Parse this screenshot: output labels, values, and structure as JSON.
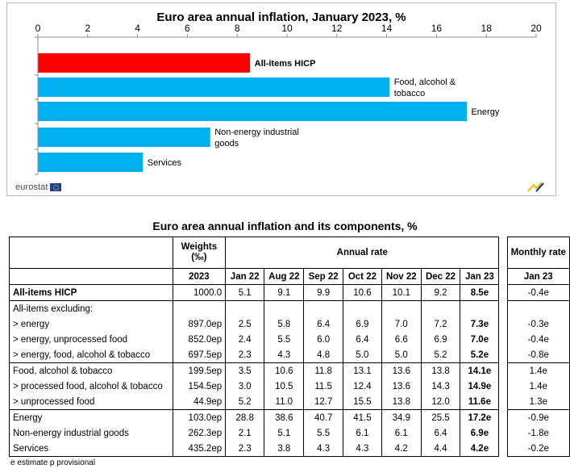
{
  "chart_data": {
    "type": "bar",
    "orientation": "horizontal",
    "title": "Euro area annual inflation, January 2023, %",
    "xlim": [
      0,
      20
    ],
    "x_ticks": [
      "0",
      "2",
      "4",
      "6",
      "8",
      "10",
      "12",
      "14",
      "16",
      "18",
      "20"
    ],
    "tick_position": "top",
    "grid": false,
    "categories": [
      "All-items HICP",
      "Food, alcohol & tobacco",
      "Energy",
      "Non-energy industrial goods",
      "Services"
    ],
    "category_label_lines": [
      [
        "All-items HICP"
      ],
      [
        "Food, alcohol &",
        "tobacco"
      ],
      [
        "Energy"
      ],
      [
        "Non-energy industrial",
        "goods"
      ],
      [
        "Services"
      ]
    ],
    "values": [
      8.5,
      14.1,
      17.2,
      6.9,
      4.2
    ],
    "colors": [
      "#ff0000",
      "#00b0f0",
      "#00b0f0",
      "#00b0f0",
      "#00b0f0"
    ]
  },
  "branding": {
    "logo_text": "eurostat"
  },
  "table": {
    "title": "Euro area annual inflation and its components, %",
    "header": {
      "weights": "Weights",
      "weights_unit": "(‰)",
      "annual_rate": "Annual rate",
      "monthly_rate": "Monthly rate",
      "weights_year": "2023",
      "months": [
        "Jan 22",
        "Aug 22",
        "Sep 22",
        "Oct 22",
        "Nov 22",
        "Dec 22",
        "Jan 23"
      ],
      "monthly_month": "Jan 23"
    },
    "rows": [
      {
        "label": "All-items HICP",
        "weight": "1000.0",
        "values": [
          "5.1",
          "9.1",
          "9.9",
          "10.6",
          "10.1",
          "9.2",
          "8.5e"
        ],
        "monthly": "-0.4e"
      },
      {
        "label": "All-items excluding:",
        "weight": "",
        "values": [
          "",
          "",
          "",
          "",
          "",
          "",
          ""
        ],
        "monthly": ""
      },
      {
        "label": "> energy",
        "weight": "897.0ep",
        "values": [
          "2.5",
          "5.8",
          "6.4",
          "6.9",
          "7.0",
          "7.2",
          "7.3e"
        ],
        "monthly": "-0.3e"
      },
      {
        "label": "> energy, unprocessed food",
        "weight": "852.0ep",
        "values": [
          "2.4",
          "5.5",
          "6.0",
          "6.4",
          "6.6",
          "6.9",
          "7.0e"
        ],
        "monthly": "-0.4e"
      },
      {
        "label": "> energy, food, alcohol & tobacco",
        "weight": "697.5ep",
        "values": [
          "2.3",
          "4.3",
          "4.8",
          "5.0",
          "5.0",
          "5.2",
          "5.2e"
        ],
        "monthly": "-0.8e"
      },
      {
        "label": "Food, alcohol & tobacco",
        "weight": "199.5ep",
        "values": [
          "3.5",
          "10.6",
          "11.8",
          "13.1",
          "13.6",
          "13.8",
          "14.1e"
        ],
        "monthly": "1.4e"
      },
      {
        "label": "> processed food, alcohol & tobacco",
        "weight": "154.5ep",
        "values": [
          "3.0",
          "10.5",
          "11.5",
          "12.4",
          "13.6",
          "14.3",
          "14.9e"
        ],
        "monthly": "1.4e"
      },
      {
        "label": "> unprocessed food",
        "weight": "44.9ep",
        "values": [
          "5.2",
          "11.0",
          "12.7",
          "15.5",
          "13.8",
          "12.0",
          "11.6e"
        ],
        "monthly": "1.3e"
      },
      {
        "label": "Energy",
        "weight": "103.0ep",
        "values": [
          "28.8",
          "38.6",
          "40.7",
          "41.5",
          "34.9",
          "25.5",
          "17.2e"
        ],
        "monthly": "-0.9e"
      },
      {
        "label": "Non-energy industrial goods",
        "weight": "262.3ep",
        "values": [
          "2.1",
          "5.1",
          "5.5",
          "6.1",
          "6.1",
          "6.4",
          "6.9e"
        ],
        "monthly": "-1.8e"
      },
      {
        "label": "Services",
        "weight": "435.2ep",
        "values": [
          "2.3",
          "3.8",
          "4.3",
          "4.3",
          "4.2",
          "4.4",
          "4.2e"
        ],
        "monthly": "-0.2e"
      }
    ],
    "footnote": "e estimate   p provisional"
  }
}
